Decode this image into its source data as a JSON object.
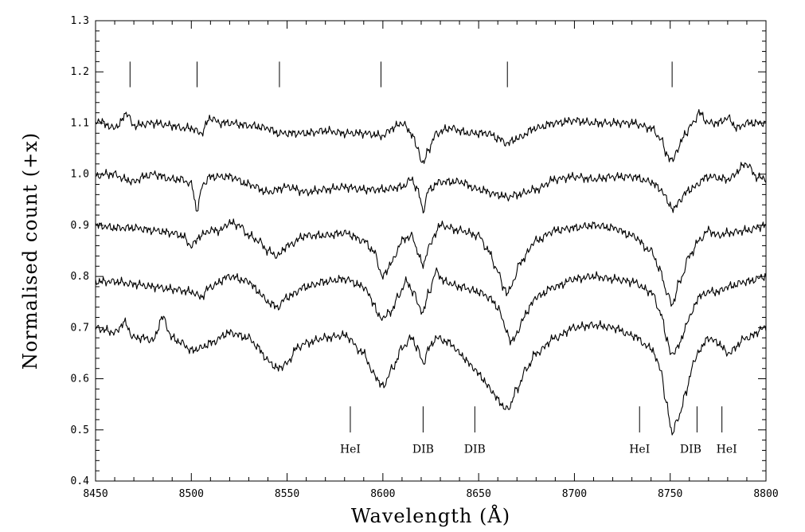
{
  "chart_data": {
    "type": "line",
    "xlabel": "Wavelength (Å)",
    "ylabel": "Normalised count (+x)",
    "xlim": [
      8450,
      8800
    ],
    "ylim": [
      0.4,
      1.3
    ],
    "x_ticks": [
      "8450",
      "8500",
      "8550",
      "8600",
      "8650",
      "8700",
      "8750",
      "8800"
    ],
    "y_ticks": [
      "0.4",
      "0.5",
      "0.6",
      "0.7",
      "0.8",
      "0.9",
      "1.0",
      "1.1",
      "1.2",
      "1.3"
    ],
    "grid": false,
    "top_markers": [
      8468,
      8503,
      8546,
      8599,
      8665,
      8751
    ],
    "bottom_markers": [
      {
        "x": 8583,
        "label": "HeI"
      },
      {
        "x": 8621,
        "label": "DIB"
      },
      {
        "x": 8648,
        "label": "DIB"
      },
      {
        "x": 8734,
        "label": "HeI"
      },
      {
        "x": 8764,
        "label": "DIB"
      },
      {
        "x": 8777,
        "label": "HeI"
      }
    ],
    "series": [
      {
        "offset": 1.1,
        "x": [
          8450,
          8455,
          8458,
          8462,
          8466,
          8470,
          8480,
          8490,
          8495,
          8500,
          8505,
          8510,
          8515,
          8520,
          8530,
          8540,
          8545,
          8550,
          8560,
          8570,
          8580,
          8590,
          8600,
          8605,
          8610,
          8615,
          8618,
          8621,
          8624,
          8628,
          8635,
          8645,
          8655,
          8660,
          8665,
          8670,
          8680,
          8690,
          8700,
          8710,
          8720,
          8730,
          8740,
          8745,
          8748,
          8751,
          8754,
          8758,
          8762,
          8765,
          8770,
          8775,
          8780,
          8785,
          8790,
          8795,
          8800
        ],
        "y": [
          1.105,
          1.1,
          1.09,
          1.095,
          1.12,
          1.095,
          1.1,
          1.095,
          1.09,
          1.09,
          1.08,
          1.11,
          1.1,
          1.1,
          1.095,
          1.09,
          1.08,
          1.08,
          1.08,
          1.085,
          1.08,
          1.08,
          1.075,
          1.09,
          1.1,
          1.08,
          1.05,
          1.02,
          1.05,
          1.08,
          1.09,
          1.08,
          1.08,
          1.07,
          1.06,
          1.07,
          1.09,
          1.1,
          1.105,
          1.1,
          1.1,
          1.1,
          1.09,
          1.07,
          1.04,
          1.025,
          1.05,
          1.08,
          1.1,
          1.12,
          1.1,
          1.1,
          1.11,
          1.09,
          1.1,
          1.1,
          1.1
        ]
      },
      {
        "offset": 1.0,
        "x": [
          8450,
          8455,
          8460,
          8465,
          8470,
          8475,
          8480,
          8490,
          8495,
          8500,
          8503,
          8506,
          8510,
          8520,
          8530,
          8540,
          8550,
          8560,
          8570,
          8580,
          8590,
          8600,
          8610,
          8615,
          8618,
          8621,
          8624,
          8630,
          8640,
          8650,
          8660,
          8665,
          8670,
          8680,
          8690,
          8700,
          8710,
          8720,
          8730,
          8740,
          8745,
          8750,
          8752,
          8755,
          8760,
          8770,
          8780,
          8790,
          8795,
          8800
        ],
        "y": [
          0.995,
          1.0,
          1.0,
          0.99,
          0.985,
          0.995,
          1.0,
          0.99,
          0.99,
          0.98,
          0.93,
          0.98,
          0.995,
          0.995,
          0.98,
          0.965,
          0.975,
          0.965,
          0.97,
          0.975,
          0.97,
          0.97,
          0.975,
          0.99,
          0.97,
          0.93,
          0.97,
          0.985,
          0.985,
          0.97,
          0.96,
          0.955,
          0.96,
          0.97,
          0.99,
          0.995,
          0.99,
          0.995,
          0.995,
          0.985,
          0.97,
          0.94,
          0.93,
          0.95,
          0.97,
          0.995,
          0.99,
          1.02,
          0.995,
          0.99
        ]
      },
      {
        "offset": 0.9,
        "x": [
          8450,
          8460,
          8470,
          8480,
          8490,
          8495,
          8500,
          8505,
          8510,
          8515,
          8520,
          8525,
          8530,
          8535,
          8540,
          8545,
          8550,
          8560,
          8570,
          8580,
          8590,
          8595,
          8600,
          8605,
          8610,
          8615,
          8618,
          8621,
          8624,
          8630,
          8640,
          8650,
          8655,
          8660,
          8663,
          8665,
          8668,
          8672,
          8680,
          8690,
          8700,
          8710,
          8720,
          8730,
          8740,
          8745,
          8748,
          8751,
          8755,
          8760,
          8765,
          8770,
          8775,
          8780,
          8790,
          8800
        ],
        "y": [
          0.9,
          0.895,
          0.895,
          0.89,
          0.885,
          0.88,
          0.86,
          0.88,
          0.89,
          0.89,
          0.905,
          0.9,
          0.88,
          0.87,
          0.85,
          0.84,
          0.86,
          0.88,
          0.88,
          0.885,
          0.87,
          0.85,
          0.8,
          0.83,
          0.87,
          0.88,
          0.85,
          0.82,
          0.86,
          0.9,
          0.89,
          0.88,
          0.85,
          0.81,
          0.78,
          0.765,
          0.79,
          0.83,
          0.87,
          0.89,
          0.895,
          0.9,
          0.895,
          0.88,
          0.85,
          0.81,
          0.77,
          0.745,
          0.79,
          0.84,
          0.87,
          0.89,
          0.88,
          0.885,
          0.89,
          0.9
        ]
      },
      {
        "offset": 0.8,
        "x": [
          8450,
          8460,
          8470,
          8480,
          8490,
          8500,
          8505,
          8510,
          8520,
          8530,
          8535,
          8540,
          8545,
          8550,
          8560,
          8570,
          8580,
          8590,
          8595,
          8598,
          8600,
          8604,
          8608,
          8612,
          8616,
          8619,
          8621,
          8624,
          8628,
          8632,
          8640,
          8650,
          8655,
          8660,
          8664,
          8667,
          8670,
          8675,
          8680,
          8690,
          8700,
          8710,
          8720,
          8730,
          8740,
          8745,
          8748,
          8751,
          8755,
          8760,
          8765,
          8770,
          8775,
          8780,
          8790,
          8800
        ],
        "y": [
          0.79,
          0.79,
          0.785,
          0.78,
          0.775,
          0.77,
          0.76,
          0.78,
          0.8,
          0.79,
          0.77,
          0.75,
          0.74,
          0.76,
          0.78,
          0.79,
          0.795,
          0.78,
          0.75,
          0.72,
          0.72,
          0.73,
          0.76,
          0.79,
          0.77,
          0.74,
          0.73,
          0.77,
          0.81,
          0.79,
          0.78,
          0.77,
          0.76,
          0.74,
          0.7,
          0.67,
          0.69,
          0.73,
          0.76,
          0.78,
          0.795,
          0.8,
          0.795,
          0.79,
          0.77,
          0.73,
          0.68,
          0.645,
          0.67,
          0.72,
          0.76,
          0.77,
          0.77,
          0.78,
          0.79,
          0.8
        ]
      },
      {
        "offset": 0.7,
        "x": [
          8450,
          8455,
          8460,
          8465,
          8470,
          8475,
          8480,
          8485,
          8490,
          8495,
          8500,
          8505,
          8510,
          8520,
          8530,
          8535,
          8540,
          8545,
          8550,
          8555,
          8560,
          8570,
          8580,
          8590,
          8595,
          8600,
          8605,
          8610,
          8615,
          8618,
          8621,
          8624,
          8628,
          8635,
          8640,
          8645,
          8650,
          8655,
          8660,
          8664,
          8666,
          8670,
          8675,
          8680,
          8690,
          8700,
          8710,
          8720,
          8730,
          8740,
          8745,
          8748,
          8751,
          8754,
          8758,
          8762,
          8766,
          8770,
          8775,
          8780,
          8790,
          8800
        ],
        "y": [
          0.7,
          0.695,
          0.69,
          0.71,
          0.68,
          0.68,
          0.675,
          0.72,
          0.68,
          0.67,
          0.655,
          0.66,
          0.67,
          0.69,
          0.68,
          0.66,
          0.635,
          0.62,
          0.63,
          0.66,
          0.67,
          0.68,
          0.685,
          0.65,
          0.61,
          0.585,
          0.62,
          0.66,
          0.68,
          0.66,
          0.63,
          0.66,
          0.68,
          0.67,
          0.65,
          0.63,
          0.61,
          0.585,
          0.56,
          0.54,
          0.545,
          0.58,
          0.62,
          0.65,
          0.68,
          0.7,
          0.705,
          0.7,
          0.685,
          0.66,
          0.62,
          0.55,
          0.495,
          0.52,
          0.57,
          0.63,
          0.66,
          0.68,
          0.67,
          0.65,
          0.68,
          0.7
        ]
      }
    ]
  }
}
